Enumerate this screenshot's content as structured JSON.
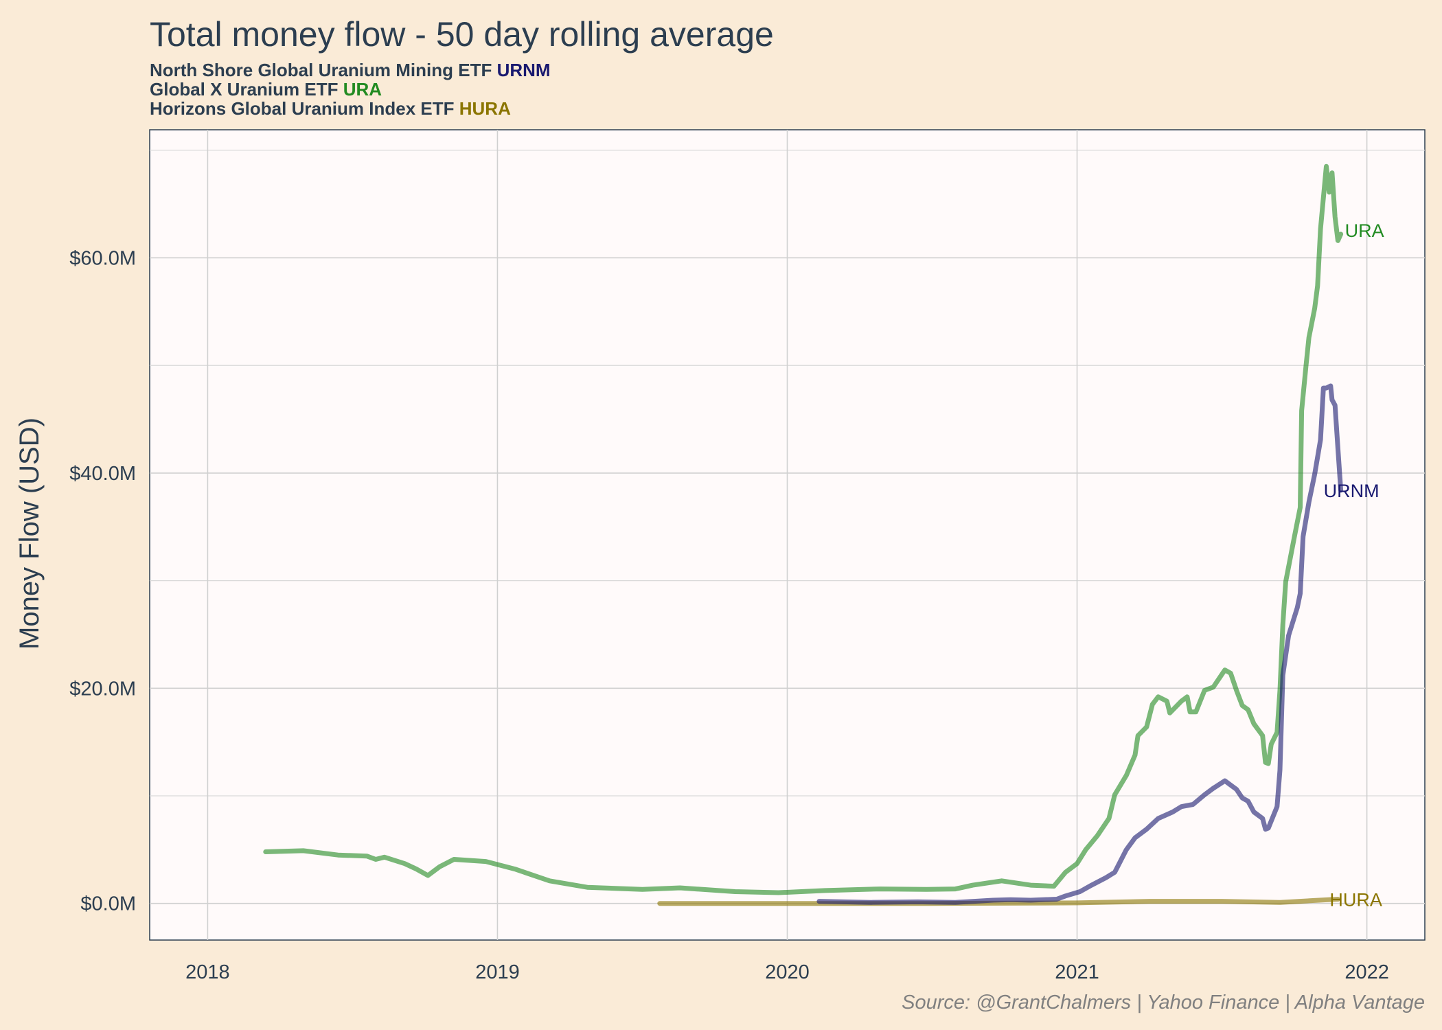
{
  "chart_data": {
    "type": "line",
    "title": "Total money flow - 50 day rolling average",
    "subtitle_lines": [
      {
        "text": "North Shore Global Uranium Mining ETF",
        "ticker": "URNM",
        "color": "#191970"
      },
      {
        "text": "Global X Uranium ETF",
        "ticker": "URA",
        "color": "#228B22"
      },
      {
        "text": "Horizons Global Uranium Index ETF",
        "ticker": "HURA",
        "color": "#8B7500"
      }
    ],
    "xlabel": "",
    "ylabel": "Money Flow (USD)",
    "caption": "Source: @GrantChalmers | Yahoo Finance | Alpha Vantage",
    "xlim": [
      2017.8,
      2022.2
    ],
    "ylim": [
      -3.4,
      71.9
    ],
    "x_ticks": [
      2018,
      2019,
      2020,
      2021,
      2022
    ],
    "x_tick_labels": [
      "2018",
      "2019",
      "2020",
      "2021",
      "2022"
    ],
    "y_ticks": [
      0,
      20,
      40,
      60
    ],
    "y_tick_labels": [
      "$0.0M",
      "$20.0M",
      "$40.0M",
      "$60.0M"
    ],
    "y_minor_grid": [
      10,
      30,
      50,
      70
    ],
    "grid": true,
    "legend": "direct labels at line ends",
    "series": [
      {
        "name": "URA",
        "color": "#228B22",
        "x": [
          2018.2,
          2018.33,
          2018.45,
          2018.55,
          2018.58,
          2018.61,
          2018.68,
          2018.72,
          2018.76,
          2018.8,
          2018.85,
          2018.96,
          2019.06,
          2019.18,
          2019.31,
          2019.5,
          2019.63,
          2019.82,
          2019.97,
          2020.13,
          2020.32,
          2020.48,
          2020.58,
          2020.64,
          2020.74,
          2020.84,
          2020.92,
          2020.96,
          2021.0,
          2021.03,
          2021.07,
          2021.11,
          2021.13,
          2021.17,
          2021.2,
          2021.21,
          2021.24,
          2021.26,
          2021.28,
          2021.31,
          2021.32,
          2021.36,
          2021.38,
          2021.39,
          2021.41,
          2021.44,
          2021.47,
          2021.51,
          2021.53,
          2021.55,
          2021.57,
          2021.59,
          2021.61,
          2021.64,
          2021.65,
          2021.66,
          2021.67,
          2021.69,
          2021.7,
          2021.71,
          2021.72,
          2021.75,
          2021.77,
          2021.775,
          2021.79,
          2021.8,
          2021.82,
          2021.83,
          2021.84,
          2021.86,
          2021.87,
          2021.88,
          2021.89,
          2021.9,
          2021.91
        ],
        "y": [
          4.8,
          4.9,
          4.5,
          4.4,
          4.1,
          4.3,
          3.7,
          3.2,
          2.6,
          3.4,
          4.1,
          3.9,
          3.2,
          2.1,
          1.5,
          1.3,
          1.45,
          1.1,
          1.0,
          1.2,
          1.35,
          1.3,
          1.35,
          1.7,
          2.1,
          1.7,
          1.6,
          2.9,
          3.7,
          5.0,
          6.3,
          7.9,
          10.1,
          11.9,
          13.8,
          15.6,
          16.4,
          18.5,
          19.2,
          18.8,
          17.7,
          18.8,
          19.2,
          17.8,
          17.8,
          19.8,
          20.1,
          21.7,
          21.4,
          19.8,
          18.4,
          18.0,
          16.7,
          15.6,
          13.1,
          13.0,
          14.8,
          15.9,
          19.8,
          25.9,
          29.9,
          34.1,
          36.8,
          45.8,
          50.0,
          52.6,
          55.3,
          57.4,
          62.7,
          68.5,
          66.1,
          67.9,
          63.8,
          61.6,
          62.2
        ]
      },
      {
        "name": "URNM",
        "color": "#191970",
        "x": [
          2020.11,
          2020.29,
          2020.45,
          2020.58,
          2020.71,
          2020.77,
          2020.84,
          2020.93,
          2020.96,
          2021.01,
          2021.05,
          2021.1,
          2021.13,
          2021.17,
          2021.2,
          2021.24,
          2021.28,
          2021.33,
          2021.36,
          2021.4,
          2021.44,
          2021.47,
          2021.51,
          2021.55,
          2021.57,
          2021.59,
          2021.61,
          2021.64,
          2021.65,
          2021.66,
          2021.69,
          2021.7,
          2021.71,
          2021.73,
          2021.76,
          2021.77,
          2021.78,
          2021.8,
          2021.82,
          2021.84,
          2021.85,
          2021.86,
          2021.875,
          2021.88,
          2021.89,
          2021.9,
          2021.91
        ],
        "y": [
          0.2,
          0.1,
          0.15,
          0.1,
          0.3,
          0.35,
          0.3,
          0.4,
          0.7,
          1.1,
          1.7,
          2.4,
          2.9,
          5.0,
          6.1,
          6.9,
          7.9,
          8.5,
          9.0,
          9.2,
          10.1,
          10.7,
          11.4,
          10.6,
          9.8,
          9.5,
          8.5,
          7.9,
          6.9,
          7.0,
          9.0,
          12.4,
          21.2,
          24.9,
          27.5,
          28.8,
          34.1,
          37.3,
          39.9,
          43.1,
          47.9,
          47.9,
          48.1,
          46.8,
          46.3,
          42.3,
          38.4
        ]
      },
      {
        "name": "HURA",
        "color": "#8B7500",
        "x": [
          2019.56,
          2020.0,
          2020.5,
          2021.0,
          2021.25,
          2021.5,
          2021.7,
          2021.9
        ],
        "y": [
          0.0,
          0.0,
          0.0,
          0.05,
          0.2,
          0.2,
          0.1,
          0.4
        ]
      }
    ]
  }
}
